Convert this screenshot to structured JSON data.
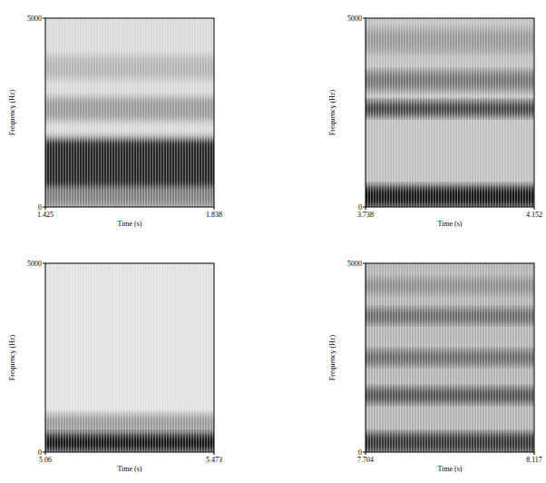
{
  "chart_data": [
    {
      "type": "spectrogram",
      "x_label": "Time (s)",
      "y_label": "Frequency (Hz)",
      "xlim": [
        1.425,
        1.838
      ],
      "ylim": [
        0,
        5000
      ],
      "xticks": [
        1.425,
        1.838
      ],
      "yticks": [
        0,
        5000
      ],
      "bands": [
        {
          "low": 0,
          "high": 5000,
          "level": 0.15
        },
        {
          "low": 3400,
          "high": 4000,
          "level": 0.3
        },
        {
          "low": 2300,
          "high": 2900,
          "level": 0.4
        },
        {
          "low": 0,
          "high": 500,
          "level": 0.5
        },
        {
          "low": 500,
          "high": 1800,
          "level": 0.85
        }
      ]
    },
    {
      "type": "spectrogram",
      "x_label": "Time (s)",
      "y_label": "Frequency (Hz)",
      "xlim": [
        3.738,
        4.152
      ],
      "ylim": [
        0,
        5000
      ],
      "xticks": [
        3.738,
        4.152
      ],
      "yticks": [
        0,
        5000
      ],
      "bands": [
        {
          "low": 0,
          "high": 5000,
          "level": 0.25
        },
        {
          "low": 4100,
          "high": 4700,
          "level": 0.4
        },
        {
          "low": 3100,
          "high": 3600,
          "level": 0.55
        },
        {
          "low": 2400,
          "high": 2800,
          "level": 0.75
        },
        {
          "low": 0,
          "high": 550,
          "level": 0.9
        }
      ]
    },
    {
      "type": "spectrogram",
      "x_label": "Time (s)",
      "y_label": "Frequency (Hz)",
      "xlim": [
        5.06,
        5.473
      ],
      "ylim": [
        0,
        5000
      ],
      "xticks": [
        5.06,
        5.473
      ],
      "yticks": [
        0,
        5000
      ],
      "bands": [
        {
          "low": 0,
          "high": 5000,
          "level": 0.12
        },
        {
          "low": 500,
          "high": 1000,
          "level": 0.4
        },
        {
          "low": 0,
          "high": 500,
          "level": 0.9
        }
      ]
    },
    {
      "type": "spectrogram",
      "x_label": "Time (s)",
      "y_label": "Frequency (Hz)",
      "xlim": [
        7.704,
        8.117
      ],
      "ylim": [
        0,
        5000
      ],
      "xticks": [
        7.704,
        8.117
      ],
      "yticks": [
        0,
        5000
      ],
      "bands": [
        {
          "low": 0,
          "high": 5000,
          "level": 0.3
        },
        {
          "low": 4200,
          "high": 4600,
          "level": 0.45
        },
        {
          "low": 3400,
          "high": 3800,
          "level": 0.6
        },
        {
          "low": 2300,
          "high": 2700,
          "level": 0.6
        },
        {
          "low": 1300,
          "high": 1700,
          "level": 0.7
        },
        {
          "low": 0,
          "high": 500,
          "level": 0.8
        }
      ]
    }
  ]
}
